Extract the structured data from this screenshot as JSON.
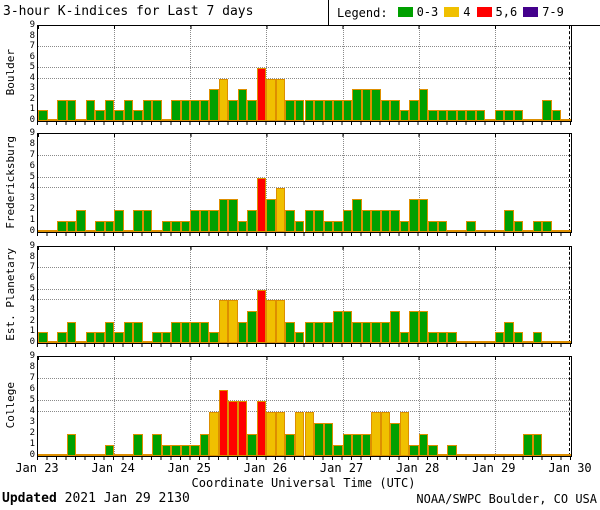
{
  "title": "3-hour K-indices for Last 7 days",
  "legend": {
    "label": "Legend:",
    "items": [
      {
        "label": "0-3",
        "color": "#00a000"
      },
      {
        "label": "4",
        "color": "#f0c000"
      },
      {
        "label": "5,6",
        "color": "#ff0000"
      },
      {
        "label": "7-9",
        "color": "#44008c"
      }
    ]
  },
  "axes": {
    "x_ticks": [
      "Jan 23",
      "Jan 24",
      "Jan 25",
      "Jan 26",
      "Jan 27",
      "Jan 28",
      "Jan 29",
      "Jan 30"
    ],
    "x_title": "Coordinate Universal Time (UTC)",
    "y_ticks": [
      9,
      8,
      7,
      6,
      5,
      4,
      3,
      2,
      1,
      0
    ]
  },
  "footer": {
    "updated_label": "Updated",
    "updated_value": " 2021 Jan 29 2130",
    "credit": "NOAA/SWPC Boulder, CO USA"
  },
  "chart_data": {
    "type": "bar",
    "title": "3-hour K-indices for Last 7 days",
    "x_start": "Jan 23",
    "x_end": "Jan 30",
    "bars_per_day": 8,
    "ylim": [
      0,
      9
    ],
    "grid_y_values": [
      4,
      5,
      7
    ],
    "legend_position": "top-right",
    "color_rule": {
      "0-3": "green",
      "4": "yellow",
      "5-6": "red",
      "7-9": "purple"
    },
    "colors": {
      "green": "#00a000",
      "yellow": "#f0c000",
      "red": "#ff0000",
      "purple": "#44008c",
      "bar_outline": "#dd8f00"
    },
    "panels": [
      {
        "station": "Boulder",
        "values": [
          1,
          0,
          2,
          2,
          0,
          2,
          1,
          2,
          1,
          2,
          1,
          2,
          2,
          0,
          2,
          2,
          2,
          2,
          3,
          4,
          2,
          3,
          2,
          5,
          4,
          4,
          2,
          2,
          2,
          2,
          2,
          2,
          2,
          3,
          3,
          3,
          2,
          2,
          1,
          2,
          3,
          1,
          1,
          1,
          1,
          1,
          1,
          0,
          1,
          1,
          1,
          0,
          0,
          2,
          1,
          0
        ]
      },
      {
        "station": "Fredericksburg",
        "values": [
          0,
          0,
          1,
          1,
          2,
          0,
          1,
          1,
          2,
          0,
          2,
          2,
          0,
          1,
          1,
          1,
          2,
          2,
          2,
          3,
          3,
          1,
          2,
          5,
          3,
          4,
          2,
          1,
          2,
          2,
          1,
          1,
          2,
          3,
          2,
          2,
          2,
          2,
          1,
          3,
          3,
          1,
          1,
          0,
          0,
          1,
          0,
          0,
          0,
          2,
          1,
          0,
          1,
          1,
          0,
          0
        ]
      },
      {
        "station": "Est. Planetary",
        "values": [
          1,
          0,
          1,
          2,
          0,
          1,
          1,
          2,
          1,
          2,
          2,
          0,
          1,
          1,
          2,
          2,
          2,
          2,
          1,
          4,
          4,
          2,
          3,
          5,
          4,
          4,
          2,
          1,
          2,
          2,
          2,
          3,
          3,
          2,
          2,
          2,
          2,
          3,
          1,
          3,
          3,
          1,
          1,
          1,
          0,
          0,
          0,
          0,
          1,
          2,
          1,
          0,
          1,
          0,
          0,
          0
        ]
      },
      {
        "station": "College",
        "values": [
          0,
          0,
          0,
          2,
          0,
          0,
          0,
          1,
          0,
          0,
          2,
          0,
          2,
          1,
          1,
          1,
          1,
          2,
          4,
          6,
          5,
          5,
          2,
          5,
          4,
          4,
          2,
          4,
          4,
          3,
          3,
          1,
          2,
          2,
          2,
          4,
          4,
          3,
          4,
          1,
          2,
          1,
          0,
          1,
          0,
          0,
          0,
          0,
          0,
          0,
          0,
          2,
          2,
          0,
          0,
          0
        ]
      }
    ]
  }
}
